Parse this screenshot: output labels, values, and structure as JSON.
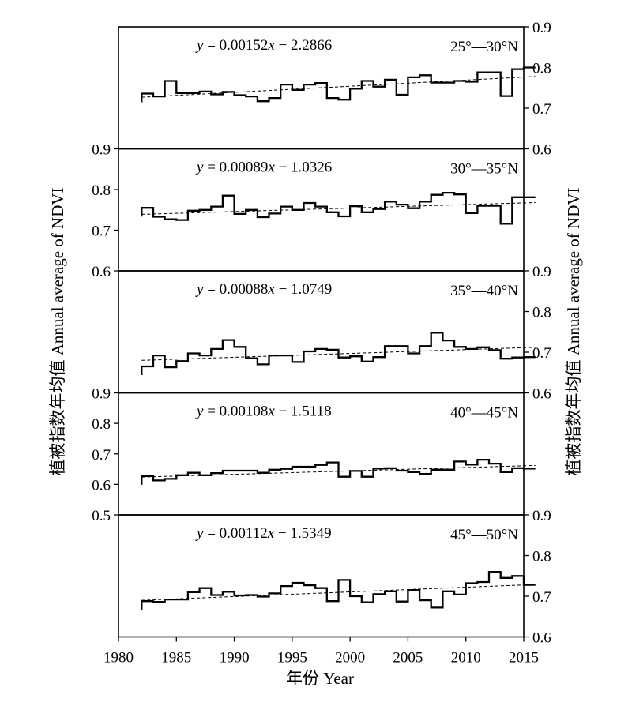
{
  "chart_data": {
    "type": "line",
    "shared_x": {
      "label": "年份 Year",
      "range": [
        1980,
        2015
      ],
      "ticks": [
        1980,
        1985,
        1990,
        1995,
        2000,
        2005,
        2010,
        2015
      ]
    },
    "ylabel": "植被指数年均值 Annual average of NDVI",
    "years": [
      1982,
      1983,
      1984,
      1985,
      1986,
      1987,
      1988,
      1989,
      1990,
      1991,
      1992,
      1993,
      1994,
      1995,
      1996,
      1997,
      1998,
      1999,
      2000,
      2001,
      2002,
      2003,
      2004,
      2005,
      2006,
      2007,
      2008,
      2009,
      2010,
      2011,
      2012,
      2013,
      2014,
      2015
    ],
    "panels": [
      {
        "label": "25°—30°N",
        "eq_prefix": "y",
        "eq_rest": " = 0.00152",
        "eq_var": "x",
        "eq_tail": " − 2.2866",
        "y_axis_side": "right",
        "ylim": [
          0.6,
          0.9
        ],
        "ticks": [
          0.6,
          0.7,
          0.8,
          0.9
        ],
        "tick_labels": [
          "0.6",
          "0.7",
          "0.8",
          "0.9"
        ],
        "trend": [
          0.727,
          0.778
        ],
        "values": [
          0.736,
          0.729,
          0.767,
          0.737,
          0.737,
          0.741,
          0.734,
          0.74,
          0.732,
          0.729,
          0.717,
          0.725,
          0.758,
          0.745,
          0.758,
          0.762,
          0.725,
          0.721,
          0.748,
          0.767,
          0.753,
          0.77,
          0.733,
          0.776,
          0.781,
          0.763,
          0.763,
          0.767,
          0.765,
          0.788,
          0.788,
          0.73,
          0.796,
          0.8
        ]
      },
      {
        "label": "30°—35°N",
        "eq_prefix": "y",
        "eq_rest": " = 0.00089",
        "eq_var": "x",
        "eq_tail": " − 1.0326",
        "y_axis_side": "left",
        "ylim": [
          0.6,
          0.9
        ],
        "ticks": [
          0.6,
          0.7,
          0.8,
          0.9
        ],
        "tick_labels": [
          "0.6",
          "0.7",
          "0.8",
          "0.9"
        ],
        "trend": [
          0.739,
          0.768
        ],
        "values": [
          0.755,
          0.733,
          0.727,
          0.725,
          0.748,
          0.75,
          0.758,
          0.785,
          0.74,
          0.75,
          0.732,
          0.741,
          0.758,
          0.75,
          0.767,
          0.758,
          0.744,
          0.734,
          0.759,
          0.744,
          0.752,
          0.77,
          0.763,
          0.754,
          0.77,
          0.787,
          0.792,
          0.788,
          0.742,
          0.76,
          0.76,
          0.716,
          0.781,
          0.781
        ]
      },
      {
        "label": "35°—40°N",
        "eq_prefix": "y",
        "eq_rest": " = 0.00088",
        "eq_var": "x",
        "eq_tail": " − 1.0749",
        "y_axis_side": "right",
        "ylim": [
          0.6,
          0.9
        ],
        "ticks": [
          0.6,
          0.7,
          0.8,
          0.9
        ],
        "tick_labels": [
          "0.6",
          "0.7",
          "0.8",
          "0.9"
        ],
        "trend": [
          0.68,
          0.712
        ],
        "values": [
          0.665,
          0.692,
          0.663,
          0.678,
          0.697,
          0.692,
          0.708,
          0.73,
          0.713,
          0.685,
          0.67,
          0.692,
          0.692,
          0.676,
          0.702,
          0.708,
          0.706,
          0.687,
          0.69,
          0.677,
          0.688,
          0.715,
          0.715,
          0.697,
          0.715,
          0.748,
          0.729,
          0.713,
          0.708,
          0.712,
          0.705,
          0.684,
          0.687,
          0.688
        ]
      },
      {
        "label": "40°—45°N",
        "eq_prefix": "y",
        "eq_rest": " = 0.00108",
        "eq_var": "x",
        "eq_tail": " − 1.5118",
        "y_axis_side": "left",
        "ylim": [
          0.5,
          0.9
        ],
        "ticks": [
          0.5,
          0.6,
          0.7,
          0.8,
          0.9
        ],
        "tick_labels": [
          "0.5",
          "0.6",
          "0.7",
          "0.8",
          "0.9"
        ],
        "trend": [
          0.624,
          0.662
        ],
        "values": [
          0.627,
          0.613,
          0.618,
          0.63,
          0.638,
          0.63,
          0.637,
          0.645,
          0.645,
          0.645,
          0.638,
          0.648,
          0.651,
          0.658,
          0.658,
          0.664,
          0.672,
          0.625,
          0.644,
          0.625,
          0.652,
          0.653,
          0.645,
          0.64,
          0.634,
          0.648,
          0.648,
          0.675,
          0.665,
          0.681,
          0.668,
          0.64,
          0.653,
          0.652
        ]
      },
      {
        "label": "45°—50°N",
        "eq_prefix": "y",
        "eq_rest": " = 0.00112",
        "eq_var": "x",
        "eq_tail": " − 1.5349",
        "y_axis_side": "right",
        "ylim": [
          0.6,
          0.9
        ],
        "ticks": [
          0.6,
          0.7,
          0.8,
          0.9
        ],
        "tick_labels": [
          "0.6",
          "0.7",
          "0.8",
          "0.9"
        ],
        "trend": [
          0.69,
          0.729
        ],
        "values": [
          0.688,
          0.686,
          0.692,
          0.692,
          0.71,
          0.72,
          0.703,
          0.711,
          0.702,
          0.703,
          0.699,
          0.707,
          0.725,
          0.733,
          0.727,
          0.72,
          0.688,
          0.74,
          0.7,
          0.685,
          0.705,
          0.712,
          0.687,
          0.715,
          0.69,
          0.672,
          0.712,
          0.704,
          0.732,
          0.735,
          0.76,
          0.745,
          0.75,
          0.728
        ]
      }
    ]
  }
}
